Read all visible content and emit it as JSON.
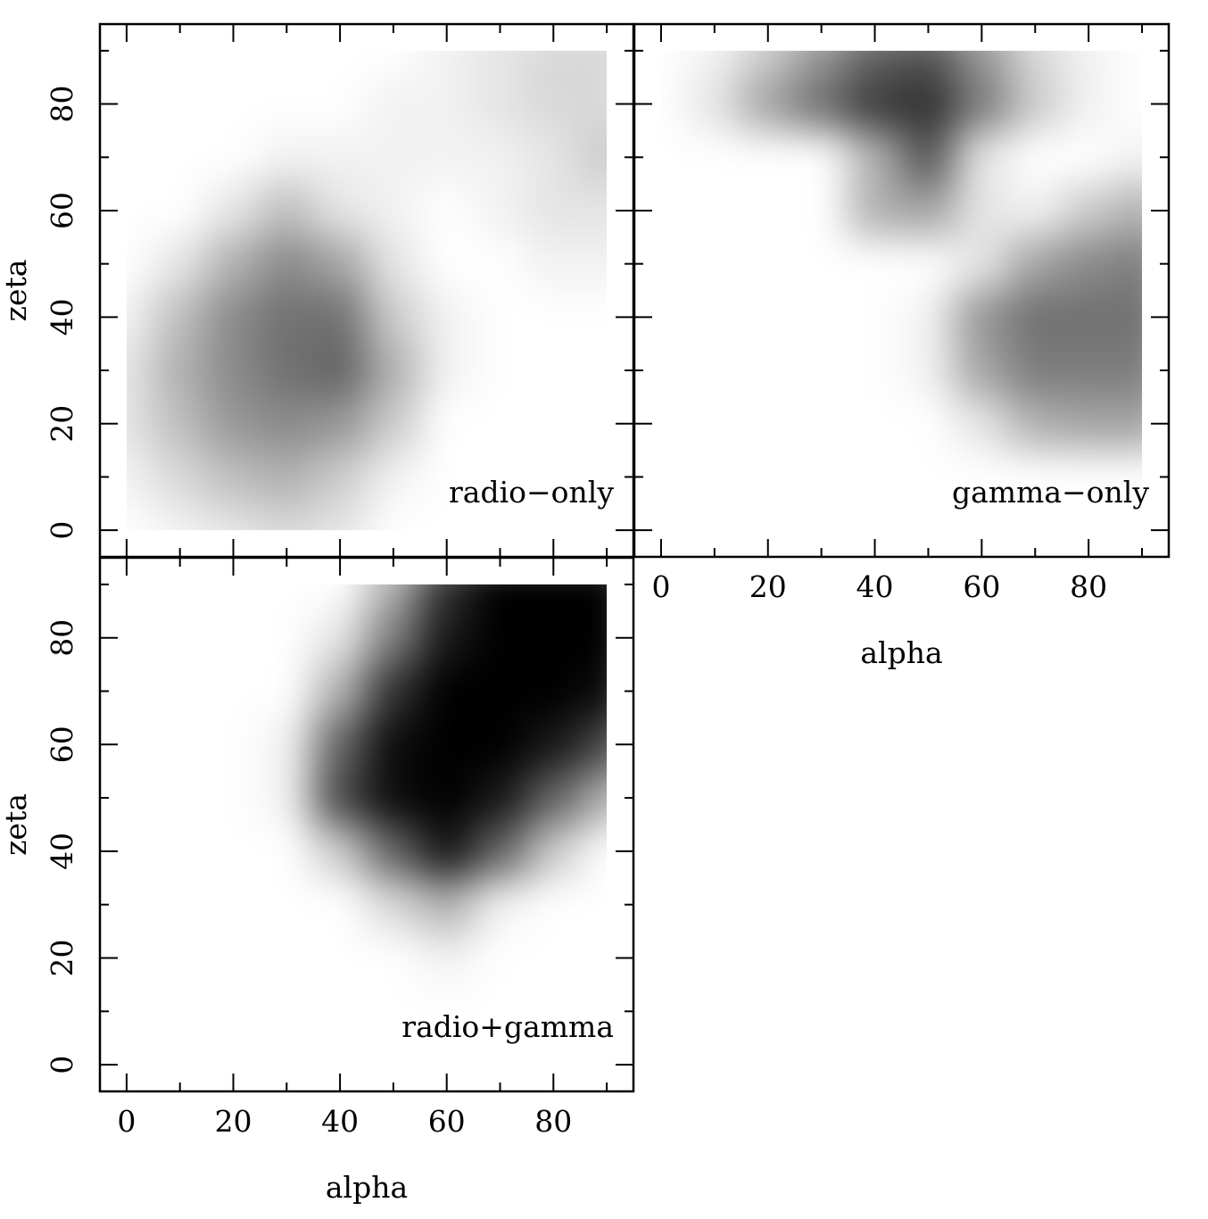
{
  "chart_data": [
    {
      "type": "heatmap",
      "label": "radio−only",
      "ylabel": "zeta",
      "x": [
        0,
        10,
        20,
        30,
        40,
        50,
        60,
        70,
        80,
        90
      ],
      "y": [
        0,
        10,
        20,
        30,
        40,
        50,
        60,
        70,
        80,
        90
      ],
      "values": [
        [
          0,
          0.05,
          0.1,
          0.15,
          0.1,
          0,
          0,
          0,
          0,
          0
        ],
        [
          0.05,
          0.15,
          0.25,
          0.3,
          0.2,
          0.05,
          0,
          0,
          0,
          0
        ],
        [
          0.1,
          0.25,
          0.4,
          0.45,
          0.4,
          0.2,
          0,
          0,
          0,
          0
        ],
        [
          0.1,
          0.3,
          0.45,
          0.55,
          0.6,
          0.3,
          0.05,
          0,
          0,
          0
        ],
        [
          0.05,
          0.25,
          0.45,
          0.55,
          0.55,
          0.2,
          0.05,
          0,
          0,
          0
        ],
        [
          0,
          0.1,
          0.3,
          0.45,
          0.35,
          0.1,
          0,
          0,
          0.05,
          0.05
        ],
        [
          0,
          0,
          0.1,
          0.25,
          0.1,
          0.05,
          0,
          0.05,
          0.1,
          0.1
        ],
        [
          0,
          0,
          0,
          0.05,
          0.05,
          0.05,
          0.05,
          0.05,
          0.1,
          0.2
        ],
        [
          0,
          0,
          0,
          0,
          0,
          0.05,
          0.05,
          0.1,
          0.15,
          0.15
        ],
        [
          0,
          0,
          0,
          0,
          0,
          0,
          0.05,
          0.1,
          0.15,
          0.15
        ]
      ],
      "xlim": [
        -5,
        95
      ],
      "ylim": [
        -5,
        95
      ],
      "xticks": [
        0,
        20,
        40,
        60,
        80
      ],
      "yticks": [
        0,
        20,
        40,
        60,
        80
      ],
      "xminor": [
        10,
        30,
        50,
        70,
        90
      ],
      "yminor": [
        10,
        30,
        50,
        70,
        90
      ],
      "xtick_labels": false,
      "ytick_labels": true
    },
    {
      "type": "heatmap",
      "label": "gamma−only",
      "xlabel": "alpha",
      "x": [
        0,
        10,
        20,
        30,
        40,
        50,
        60,
        70,
        80,
        90
      ],
      "y": [
        0,
        10,
        20,
        30,
        40,
        50,
        60,
        70,
        80,
        90
      ],
      "values": [
        [
          0,
          0,
          0,
          0,
          0,
          0,
          0,
          0,
          0,
          0
        ],
        [
          0,
          0,
          0,
          0,
          0,
          0,
          0,
          0,
          0,
          0
        ],
        [
          0,
          0,
          0,
          0,
          0,
          0,
          0.1,
          0.3,
          0.35,
          0.35
        ],
        [
          0,
          0,
          0,
          0,
          0,
          0.05,
          0.35,
          0.5,
          0.5,
          0.5
        ],
        [
          0,
          0,
          0,
          0,
          0,
          0.05,
          0.4,
          0.55,
          0.55,
          0.55
        ],
        [
          0,
          0,
          0,
          0,
          0,
          0,
          0.1,
          0.35,
          0.45,
          0.5
        ],
        [
          0,
          0,
          0,
          0,
          0.3,
          0.35,
          0.1,
          0.05,
          0.2,
          0.3
        ],
        [
          0,
          0,
          0,
          0,
          0.3,
          0.65,
          0.1,
          0,
          0,
          0.05
        ],
        [
          0,
          0.1,
          0.35,
          0.55,
          0.75,
          0.8,
          0.5,
          0.2,
          0.05,
          0
        ],
        [
          0,
          0.05,
          0.2,
          0.4,
          0.6,
          0.65,
          0.4,
          0.15,
          0.05,
          0
        ]
      ],
      "xlim": [
        -5,
        95
      ],
      "ylim": [
        -5,
        95
      ],
      "xticks": [
        0,
        20,
        40,
        60,
        80
      ],
      "yticks": [
        0,
        20,
        40,
        60,
        80
      ],
      "xminor": [
        10,
        30,
        50,
        70,
        90
      ],
      "yminor": [
        10,
        30,
        50,
        70,
        90
      ],
      "xtick_labels": true,
      "ytick_labels": false
    },
    {
      "type": "heatmap",
      "label": "radio+gamma",
      "xlabel": "alpha",
      "ylabel": "zeta",
      "x": [
        0,
        10,
        20,
        30,
        40,
        50,
        60,
        70,
        80,
        90
      ],
      "y": [
        0,
        10,
        20,
        30,
        40,
        50,
        60,
        70,
        80,
        90
      ],
      "values": [
        [
          0,
          0,
          0,
          0,
          0,
          0,
          0,
          0,
          0,
          0
        ],
        [
          0,
          0,
          0,
          0,
          0,
          0,
          0,
          0,
          0,
          0
        ],
        [
          0,
          0,
          0,
          0,
          0,
          0,
          0.05,
          0,
          0,
          0
        ],
        [
          0,
          0,
          0,
          0,
          0,
          0.15,
          0.3,
          0.05,
          0,
          0
        ],
        [
          0,
          0,
          0,
          0,
          0.2,
          0.6,
          0.9,
          0.6,
          0.2,
          0
        ],
        [
          0,
          0,
          0,
          0.05,
          0.7,
          0.95,
          1,
          0.9,
          0.6,
          0.3
        ],
        [
          0,
          0,
          0,
          0.05,
          0.6,
          0.95,
          1,
          1,
          0.9,
          0.7
        ],
        [
          0,
          0,
          0,
          0,
          0.3,
          0.8,
          1,
          1,
          1,
          0.95
        ],
        [
          0,
          0,
          0,
          0,
          0.1,
          0.5,
          0.9,
          1,
          1,
          1
        ],
        [
          0,
          0,
          0,
          0,
          0,
          0.3,
          0.8,
          1,
          1,
          1
        ]
      ],
      "xlim": [
        -5,
        95
      ],
      "ylim": [
        -5,
        95
      ],
      "xticks": [
        0,
        20,
        40,
        60,
        80
      ],
      "yticks": [
        0,
        20,
        40,
        60,
        80
      ],
      "xminor": [
        10,
        30,
        50,
        70,
        90
      ],
      "yminor": [
        10,
        30,
        50,
        70,
        90
      ],
      "xtick_labels": true,
      "ytick_labels": true
    }
  ]
}
